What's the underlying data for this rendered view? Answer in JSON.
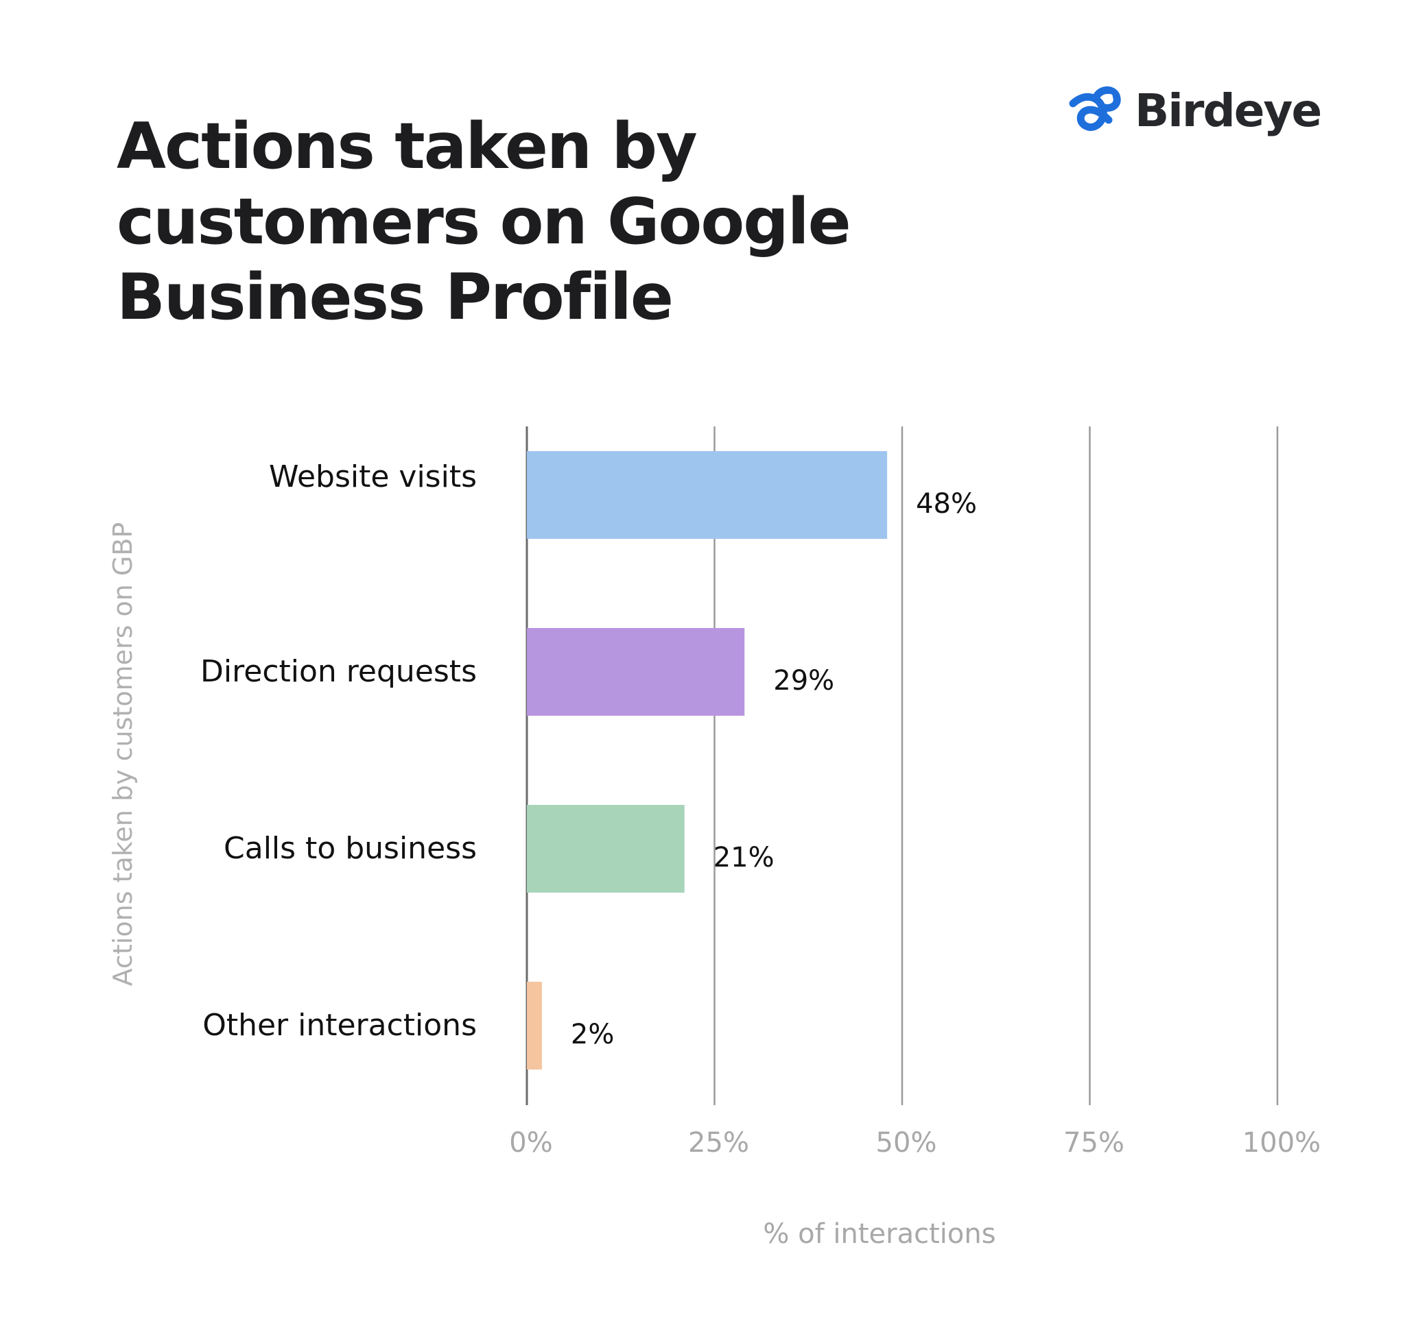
{
  "title_lines": [
    "Actions taken by",
    "customers on Google",
    "Business Profile"
  ],
  "brand": {
    "name": "Birdeye",
    "icon": "birdeye-logo-icon",
    "color": "#1e6fdc"
  },
  "chart_data": {
    "type": "bar",
    "orientation": "horizontal",
    "categories": [
      "Website visits",
      "Direction requests",
      "Calls to business",
      "Other interactions"
    ],
    "values": [
      48,
      29,
      21,
      2
    ],
    "value_labels": [
      "48%",
      "29%",
      "21%",
      "2%"
    ],
    "colors": [
      "#9ec5ee",
      "#b796e0",
      "#a8d5ba",
      "#f5c59f"
    ],
    "xlim": [
      0,
      100
    ],
    "x_ticks": [
      0,
      25,
      50,
      75,
      100
    ],
    "x_tick_labels": [
      "0%",
      "25%",
      "50%",
      "75%",
      "100%"
    ],
    "xlabel": "% of interactions",
    "ylabel": "Actions taken by customers on GBP",
    "grid": true
  }
}
